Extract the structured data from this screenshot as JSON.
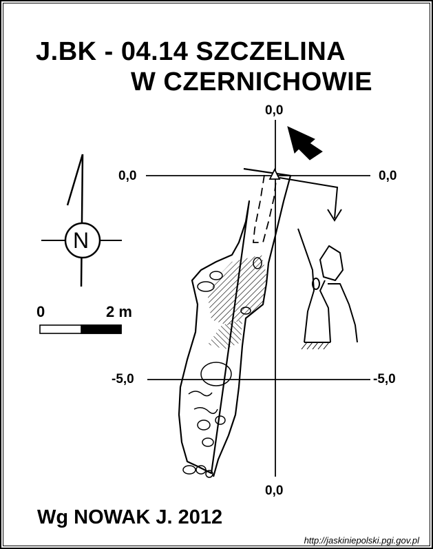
{
  "title": {
    "line1": "J.BK - 04.14  SZCZELINA",
    "line2": "W CZERNICHOWIE"
  },
  "grid_labels": {
    "top": "0,0",
    "left_upper": "0,0",
    "right_upper": "0,0",
    "left_lower": "-5,0",
    "right_lower": "-5,0",
    "bottom": "0,0"
  },
  "north_label": "N",
  "scale_bar": {
    "min_label": "0",
    "max_label": "2 m"
  },
  "author": "Wg NOWAK J. 2012",
  "source_url": "http://jaskiniepolski.pgi.gov.pl",
  "colors": {
    "ink": "#000000",
    "paper": "#ffffff"
  }
}
